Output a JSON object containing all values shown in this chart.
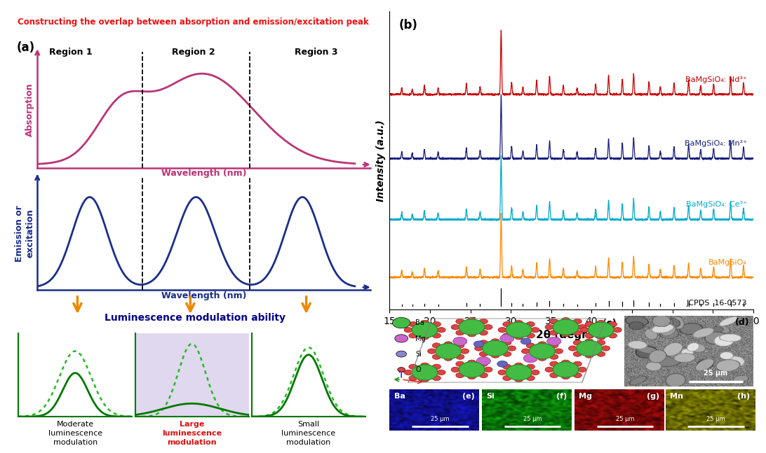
{
  "title_text": "Constructing the overlap between absorption and emission/excitation peak",
  "title_color": "#EE1111",
  "bg_color_left": "#DFF0FA",
  "bg_color_region2": "#E0D8EE",
  "border_color": "#4488CC",
  "panel_a_label": "(a)",
  "region_labels": [
    "Region 1",
    "Region 2",
    "Region 3"
  ],
  "absorption_color": "#BB3377",
  "emission_color": "#1A2E8A",
  "arrow_color": "#EE8800",
  "modulation_color_solid": "#007700",
  "modulation_color_dashed": "#22BB22",
  "xlabel_absorption": "Wavelength (nm)",
  "xlabel_emission": "Wavelength (nm)",
  "ylabel_absorption": "Absorption",
  "ylabel_emission": "Emission or\nexcitation",
  "lum_box_color": "#FFFACC",
  "lum_text": "Luminescence modulation ability",
  "lum_text_color": "#000088",
  "mod_labels": [
    "Moderate\nluminescence\nmodulation",
    "Large\nluminescence\nmodulation",
    "Small\nluminescence\nmodulation"
  ],
  "mod_label_colors": [
    "#000000",
    "#DD1111",
    "#000000"
  ],
  "xrd_xlabel": "2θ (degree)",
  "xrd_ylabel": "Intensity (a.u.)",
  "xrd_panel_label": "(b)",
  "xrd_xlim": [
    15,
    60
  ],
  "xrd_colors": [
    "#CC0000",
    "#1A2080",
    "#00AACC",
    "#FF8800"
  ],
  "xrd_labels": [
    "BaMgSiO₄: Nd³⁺",
    "BaMgSiO₄: Mn²⁺",
    "BaMgSiO₄: Ce³⁺",
    "BaMgSiO₄"
  ],
  "jcpds_label": "JCPDS  16-0573",
  "crystal_panel_label": "(c)",
  "sem_panel_label": "(d)",
  "sem_scalebar": "25 μm",
  "eds_labels": [
    "Ba",
    "Si",
    "Mg",
    "Mn"
  ],
  "eds_panel_labels": [
    "(e)",
    "(f)",
    "(g)",
    "(h)"
  ],
  "eds_scalebar": "25 μm",
  "crystal_legend": [
    "Ba",
    "Mg",
    "Si",
    "O"
  ],
  "crystal_legend_colors": [
    "#44BB44",
    "#CC66CC",
    "#8888CC",
    "#DD4444"
  ]
}
